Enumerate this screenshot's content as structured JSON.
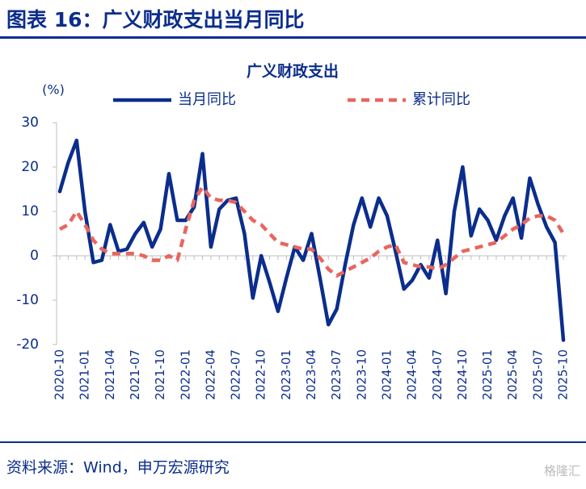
{
  "header": {
    "title": "图表 16：广义财政支出当月同比"
  },
  "chart_data": {
    "type": "line",
    "title": "广义财政支出",
    "y_label": "(%)",
    "categories": [
      "2020-10",
      null,
      null,
      "2021-01",
      null,
      null,
      "2021-04",
      null,
      null,
      "2021-07",
      null,
      null,
      "2021-10",
      null,
      null,
      "2022-01",
      null,
      null,
      "2022-04",
      null,
      null,
      "2022-07",
      null,
      null,
      "2022-10",
      null,
      null,
      "2023-01",
      null,
      null,
      "2023-04",
      null,
      null,
      "2023-07",
      null,
      null,
      "2023-10",
      null,
      null,
      "2024-01",
      null,
      null,
      "2024-04",
      null,
      null,
      "2024-07",
      null,
      null,
      "2024-10",
      null,
      null,
      "2025-01",
      null,
      null,
      "2025-04",
      null,
      null,
      "2025-07",
      null,
      null,
      "2025-10"
    ],
    "series": [
      {
        "name": "当月同比",
        "color": "#0b2d8c",
        "dash": false,
        "values": [
          14.5,
          21,
          26,
          10,
          -1.5,
          -1,
          7,
          1,
          1.5,
          5,
          7.5,
          2,
          6,
          18.5,
          8,
          8,
          11,
          23,
          2,
          10.5,
          12.5,
          13,
          5,
          -9.5,
          0,
          -6,
          -12.5,
          -5,
          2,
          -1,
          5,
          -5,
          -15.5,
          -12,
          -2,
          7,
          13,
          6.5,
          13,
          9,
          1,
          -7.5,
          -5.5,
          -2,
          -5,
          3.5,
          -8.5,
          10,
          20,
          4.5,
          10.5,
          8,
          3.5,
          9,
          13,
          4,
          17.5,
          11.5,
          6.5,
          3,
          -19
        ]
      },
      {
        "name": "累计同比",
        "color": "#e8665e",
        "dash": true,
        "values": [
          6,
          7,
          10,
          7,
          3.5,
          1.5,
          0.5,
          0.5,
          0.5,
          0.5,
          0,
          -1,
          -1,
          0,
          -1,
          6,
          12.5,
          15.5,
          13,
          12.5,
          12.5,
          12,
          10,
          8,
          7,
          5,
          3,
          2.5,
          2,
          1.5,
          1.5,
          -0.5,
          -3,
          -4.5,
          -3.5,
          -2.5,
          -1.5,
          -0.5,
          1,
          2,
          2.5,
          -1.5,
          -2,
          -2.5,
          -2.5,
          -3,
          -2,
          -0.5,
          1,
          1.5,
          2,
          2.5,
          3,
          4.5,
          6,
          7,
          8.5,
          9,
          9,
          8,
          5
        ]
      }
    ],
    "ylim": [
      -20,
      30
    ],
    "yticks": [
      -20,
      -10,
      0,
      10,
      20,
      30
    ]
  },
  "footer": {
    "source": "资料来源：Wind，申万宏源研究",
    "watermark": "格隆汇"
  }
}
